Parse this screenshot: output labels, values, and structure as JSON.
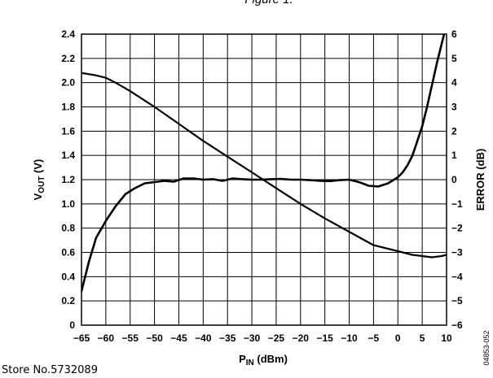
{
  "figure_title": "Figure 1.",
  "footer_text": "Store No.5732089",
  "figure_code": "04853-052",
  "chart_data": {
    "type": "line",
    "xlabel": "P",
    "xlabel_sub": "IN",
    "xlabel_unit": " (dBm)",
    "ylabel": "V",
    "ylabel_sub": "OUT",
    "ylabel_unit": " (V)",
    "y2label": "ERROR (dB)",
    "xlim": [
      -65,
      10
    ],
    "ylim": [
      0,
      2.4
    ],
    "y2lim": [
      -6,
      6
    ],
    "x_ticks": [
      -65,
      -60,
      -55,
      -50,
      -45,
      -40,
      -35,
      -30,
      -25,
      -20,
      -15,
      -10,
      -5,
      0,
      5,
      10
    ],
    "x_tick_labels": [
      "−65",
      "−60",
      "−55",
      "−50",
      "−45",
      "−40",
      "−35",
      "−30",
      "−25",
      "−20",
      "−15",
      "−10",
      "−5",
      "0",
      "5",
      "10"
    ],
    "y_ticks": [
      0,
      0.2,
      0.4,
      0.6,
      0.8,
      1.0,
      1.2,
      1.4,
      1.6,
      1.8,
      2.0,
      2.2,
      2.4
    ],
    "y_tick_labels": [
      "0",
      "0.2",
      "0.4",
      "0.6",
      "0.8",
      "1.0",
      "1.2",
      "1.4",
      "1.6",
      "1.8",
      "2.0",
      "2.2",
      "2.4"
    ],
    "y2_ticks": [
      -6,
      -5,
      -4,
      -3,
      -2,
      -1,
      0,
      1,
      2,
      3,
      4,
      5,
      6
    ],
    "y2_tick_labels": [
      "−6",
      "−5",
      "−4",
      "−3",
      "−2",
      "−1",
      "0",
      "1",
      "2",
      "3",
      "4",
      "5",
      "6"
    ],
    "grid": true,
    "series": [
      {
        "axis": "left",
        "x": [
          -65,
          -62,
          -60,
          -58,
          -55,
          -50,
          -45,
          -40,
          -35,
          -30,
          -25,
          -20,
          -15,
          -10,
          -5,
          0,
          3,
          5,
          7,
          9,
          10
        ],
        "y": [
          2.08,
          2.06,
          2.04,
          2.0,
          1.93,
          1.8,
          1.66,
          1.52,
          1.39,
          1.26,
          1.13,
          1.0,
          0.88,
          0.77,
          0.66,
          0.61,
          0.58,
          0.57,
          0.56,
          0.57,
          0.58
        ]
      },
      {
        "axis": "right",
        "x": [
          -65,
          -63.5,
          -62,
          -60,
          -58,
          -56,
          -54,
          -52,
          -50,
          -48,
          -46,
          -44,
          -42,
          -40,
          -38,
          -36,
          -34,
          -32,
          -30,
          -28,
          -26,
          -24,
          -22,
          -20,
          -18,
          -16,
          -14,
          -12,
          -10,
          -8,
          -6,
          -4,
          -2,
          0,
          1,
          2,
          3,
          4,
          5,
          6,
          7,
          8,
          9,
          9.5,
          10
        ],
        "y": [
          -4.6,
          -3.4,
          -2.4,
          -1.7,
          -1.1,
          -0.6,
          -0.35,
          -0.15,
          -0.1,
          -0.05,
          -0.08,
          0.05,
          0.05,
          0.0,
          0.02,
          -0.05,
          0.05,
          0.02,
          0.0,
          0.0,
          0.02,
          0.03,
          0.0,
          0.0,
          -0.02,
          -0.05,
          -0.06,
          -0.02,
          0.0,
          -0.1,
          -0.25,
          -0.28,
          -0.15,
          0.1,
          0.3,
          0.6,
          1.0,
          1.6,
          2.2,
          3.0,
          3.9,
          4.8,
          5.6,
          6.0,
          6.3
        ]
      }
    ]
  }
}
